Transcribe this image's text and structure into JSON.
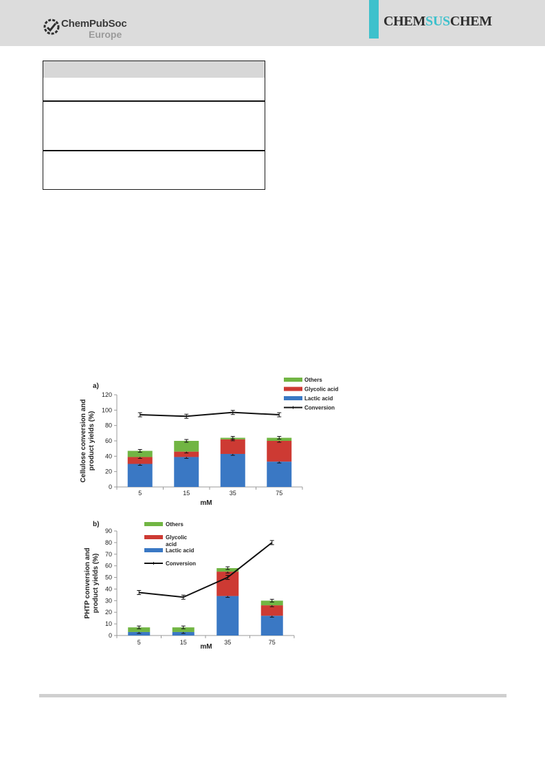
{
  "header": {
    "publisher_name": "ChemPubSoc",
    "publisher_region": "Europe",
    "journal_parts": [
      "CHEM",
      "SUS",
      "CHEM"
    ]
  },
  "colors": {
    "header_bg": "#dcdcdc",
    "accent_teal": "#3ec1cc",
    "others": "#71b543",
    "glycolic": "#cd3a33",
    "lactic": "#3a78c4",
    "conversion": "#111111"
  },
  "chart_data": [
    {
      "panel": "a)",
      "type": "bar",
      "stacked": true,
      "categories": [
        "5",
        "15",
        "35",
        "75"
      ],
      "xlabel": "mM",
      "ylabel": "Cellulose conversion and product yields (%)",
      "ylabel_lines": [
        "Cellulose conversion and",
        "product yields (%)"
      ],
      "ylim": [
        0,
        120
      ],
      "yticks": [
        0,
        20,
        40,
        60,
        80,
        100,
        120
      ],
      "legend_position": "top-right",
      "series": [
        {
          "name": "Lactic acid",
          "values": [
            30,
            39,
            43,
            33
          ],
          "color": "#3a78c4"
        },
        {
          "name": "Glycolic acid",
          "values": [
            9,
            7,
            19,
            27
          ],
          "color": "#cd3a33"
        },
        {
          "name": "Others",
          "values": [
            8,
            14,
            2,
            4
          ],
          "color": "#71b543"
        }
      ],
      "line_series": {
        "name": "Conversion",
        "values": [
          94,
          92,
          97,
          94
        ],
        "color": "#111111"
      },
      "legend_order": [
        "Others",
        "Glycolic acid",
        "Lactic acid",
        "Conversion"
      ]
    },
    {
      "panel": "b)",
      "type": "bar",
      "stacked": true,
      "categories": [
        "5",
        "15",
        "35",
        "75"
      ],
      "xlabel": "mM",
      "ylabel": "PHTP conversion and product yields (%)",
      "ylabel_lines": [
        "PHTP conversion and",
        "product yields (%)"
      ],
      "ylim": [
        0,
        90
      ],
      "yticks": [
        0,
        10,
        20,
        30,
        40,
        50,
        60,
        70,
        80,
        90
      ],
      "legend_position": "top-left",
      "series": [
        {
          "name": "Lactic acid",
          "values": [
            3,
            3,
            34,
            17
          ],
          "color": "#3a78c4"
        },
        {
          "name": "Glycolic acid",
          "values": [
            0,
            0,
            21,
            9
          ],
          "color": "#cd3a33"
        },
        {
          "name": "Others",
          "values": [
            4,
            4,
            3,
            4
          ],
          "color": "#71b543"
        }
      ],
      "line_series": {
        "name": "Conversion",
        "values": [
          37,
          33,
          50,
          80
        ],
        "color": "#111111"
      },
      "legend_order": [
        "Others",
        "Glycolic acid",
        "Lactic acid",
        "Conversion"
      ]
    }
  ]
}
